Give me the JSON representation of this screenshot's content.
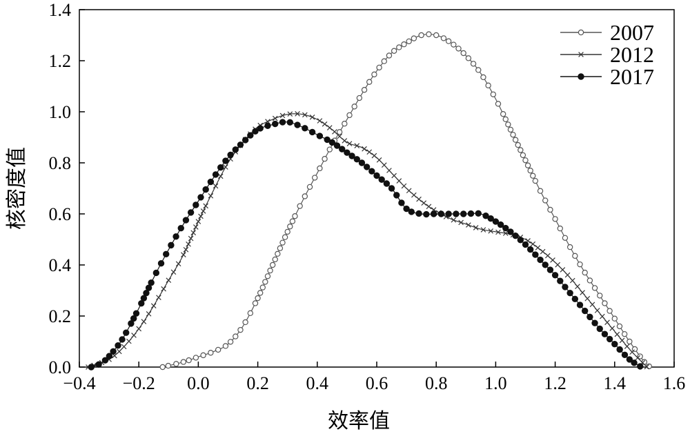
{
  "chart_data": {
    "type": "line",
    "title": "",
    "xlabel": "效率值",
    "ylabel": "核密度值",
    "xlim": [
      -0.4,
      1.6
    ],
    "ylim": [
      0.0,
      1.4
    ],
    "x_ticks": [
      "−0.4",
      "−0.2",
      "0.0",
      "0.2",
      "0.4",
      "0.6",
      "0.8",
      "1.0",
      "1.2",
      "1.4",
      "1.6"
    ],
    "y_ticks": [
      "0.0",
      "0.2",
      "0.4",
      "0.6",
      "0.8",
      "1.0",
      "1.2",
      "1.4"
    ],
    "grid": false,
    "legend_position": "top-right",
    "series": [
      {
        "name": "2007",
        "marker": "open-circle",
        "color": "#555555",
        "points": [
          [
            -0.12,
            0.0
          ],
          [
            -0.05,
            0.02
          ],
          [
            0.0,
            0.04
          ],
          [
            0.05,
            0.06
          ],
          [
            0.1,
            0.09
          ],
          [
            0.15,
            0.16
          ],
          [
            0.2,
            0.27
          ],
          [
            0.25,
            0.4
          ],
          [
            0.3,
            0.53
          ],
          [
            0.35,
            0.65
          ],
          [
            0.4,
            0.76
          ],
          [
            0.45,
            0.87
          ],
          [
            0.5,
            0.97
          ],
          [
            0.55,
            1.07
          ],
          [
            0.6,
            1.16
          ],
          [
            0.65,
            1.23
          ],
          [
            0.7,
            1.27
          ],
          [
            0.75,
            1.3
          ],
          [
            0.8,
            1.3
          ],
          [
            0.85,
            1.27
          ],
          [
            0.9,
            1.22
          ],
          [
            0.95,
            1.15
          ],
          [
            1.0,
            1.05
          ],
          [
            1.05,
            0.93
          ],
          [
            1.1,
            0.81
          ],
          [
            1.15,
            0.69
          ],
          [
            1.2,
            0.58
          ],
          [
            1.25,
            0.47
          ],
          [
            1.3,
            0.37
          ],
          [
            1.35,
            0.28
          ],
          [
            1.4,
            0.19
          ],
          [
            1.45,
            0.1
          ],
          [
            1.5,
            0.02
          ],
          [
            1.52,
            0.0
          ]
        ]
      },
      {
        "name": "2012",
        "marker": "cross",
        "color": "#333333",
        "points": [
          [
            -0.37,
            0.0
          ],
          [
            -0.3,
            0.03
          ],
          [
            -0.25,
            0.08
          ],
          [
            -0.2,
            0.15
          ],
          [
            -0.15,
            0.24
          ],
          [
            -0.1,
            0.34
          ],
          [
            -0.05,
            0.44
          ],
          [
            0.0,
            0.57
          ],
          [
            0.05,
            0.69
          ],
          [
            0.1,
            0.8
          ],
          [
            0.15,
            0.88
          ],
          [
            0.2,
            0.94
          ],
          [
            0.25,
            0.97
          ],
          [
            0.3,
            0.99
          ],
          [
            0.35,
            0.99
          ],
          [
            0.4,
            0.97
          ],
          [
            0.45,
            0.93
          ],
          [
            0.5,
            0.88
          ],
          [
            0.55,
            0.86
          ],
          [
            0.6,
            0.82
          ],
          [
            0.65,
            0.76
          ],
          [
            0.7,
            0.7
          ],
          [
            0.75,
            0.65
          ],
          [
            0.8,
            0.61
          ],
          [
            0.85,
            0.58
          ],
          [
            0.9,
            0.56
          ],
          [
            0.95,
            0.54
          ],
          [
            1.0,
            0.53
          ],
          [
            1.05,
            0.52
          ],
          [
            1.1,
            0.5
          ],
          [
            1.15,
            0.46
          ],
          [
            1.2,
            0.41
          ],
          [
            1.25,
            0.35
          ],
          [
            1.3,
            0.28
          ],
          [
            1.35,
            0.21
          ],
          [
            1.4,
            0.14
          ],
          [
            1.45,
            0.07
          ],
          [
            1.5,
            0.01
          ],
          [
            1.51,
            0.0
          ]
        ]
      },
      {
        "name": "2017",
        "marker": "filled-circle",
        "color": "#111111",
        "points": [
          [
            -0.36,
            0.0
          ],
          [
            -0.32,
            0.02
          ],
          [
            -0.28,
            0.07
          ],
          [
            -0.25,
            0.12
          ],
          [
            -0.2,
            0.23
          ],
          [
            -0.15,
            0.35
          ],
          [
            -0.1,
            0.46
          ],
          [
            -0.05,
            0.56
          ],
          [
            0.0,
            0.65
          ],
          [
            0.05,
            0.74
          ],
          [
            0.1,
            0.82
          ],
          [
            0.15,
            0.88
          ],
          [
            0.2,
            0.93
          ],
          [
            0.25,
            0.95
          ],
          [
            0.3,
            0.96
          ],
          [
            0.35,
            0.94
          ],
          [
            0.4,
            0.91
          ],
          [
            0.45,
            0.88
          ],
          [
            0.5,
            0.84
          ],
          [
            0.55,
            0.8
          ],
          [
            0.6,
            0.75
          ],
          [
            0.65,
            0.7
          ],
          [
            0.7,
            0.62
          ],
          [
            0.75,
            0.6
          ],
          [
            0.8,
            0.6
          ],
          [
            0.85,
            0.6
          ],
          [
            0.9,
            0.6
          ],
          [
            0.95,
            0.6
          ],
          [
            1.0,
            0.57
          ],
          [
            1.05,
            0.53
          ],
          [
            1.1,
            0.48
          ],
          [
            1.15,
            0.42
          ],
          [
            1.2,
            0.36
          ],
          [
            1.25,
            0.29
          ],
          [
            1.3,
            0.22
          ],
          [
            1.35,
            0.15
          ],
          [
            1.4,
            0.09
          ],
          [
            1.45,
            0.03
          ],
          [
            1.49,
            0.0
          ]
        ]
      }
    ]
  }
}
